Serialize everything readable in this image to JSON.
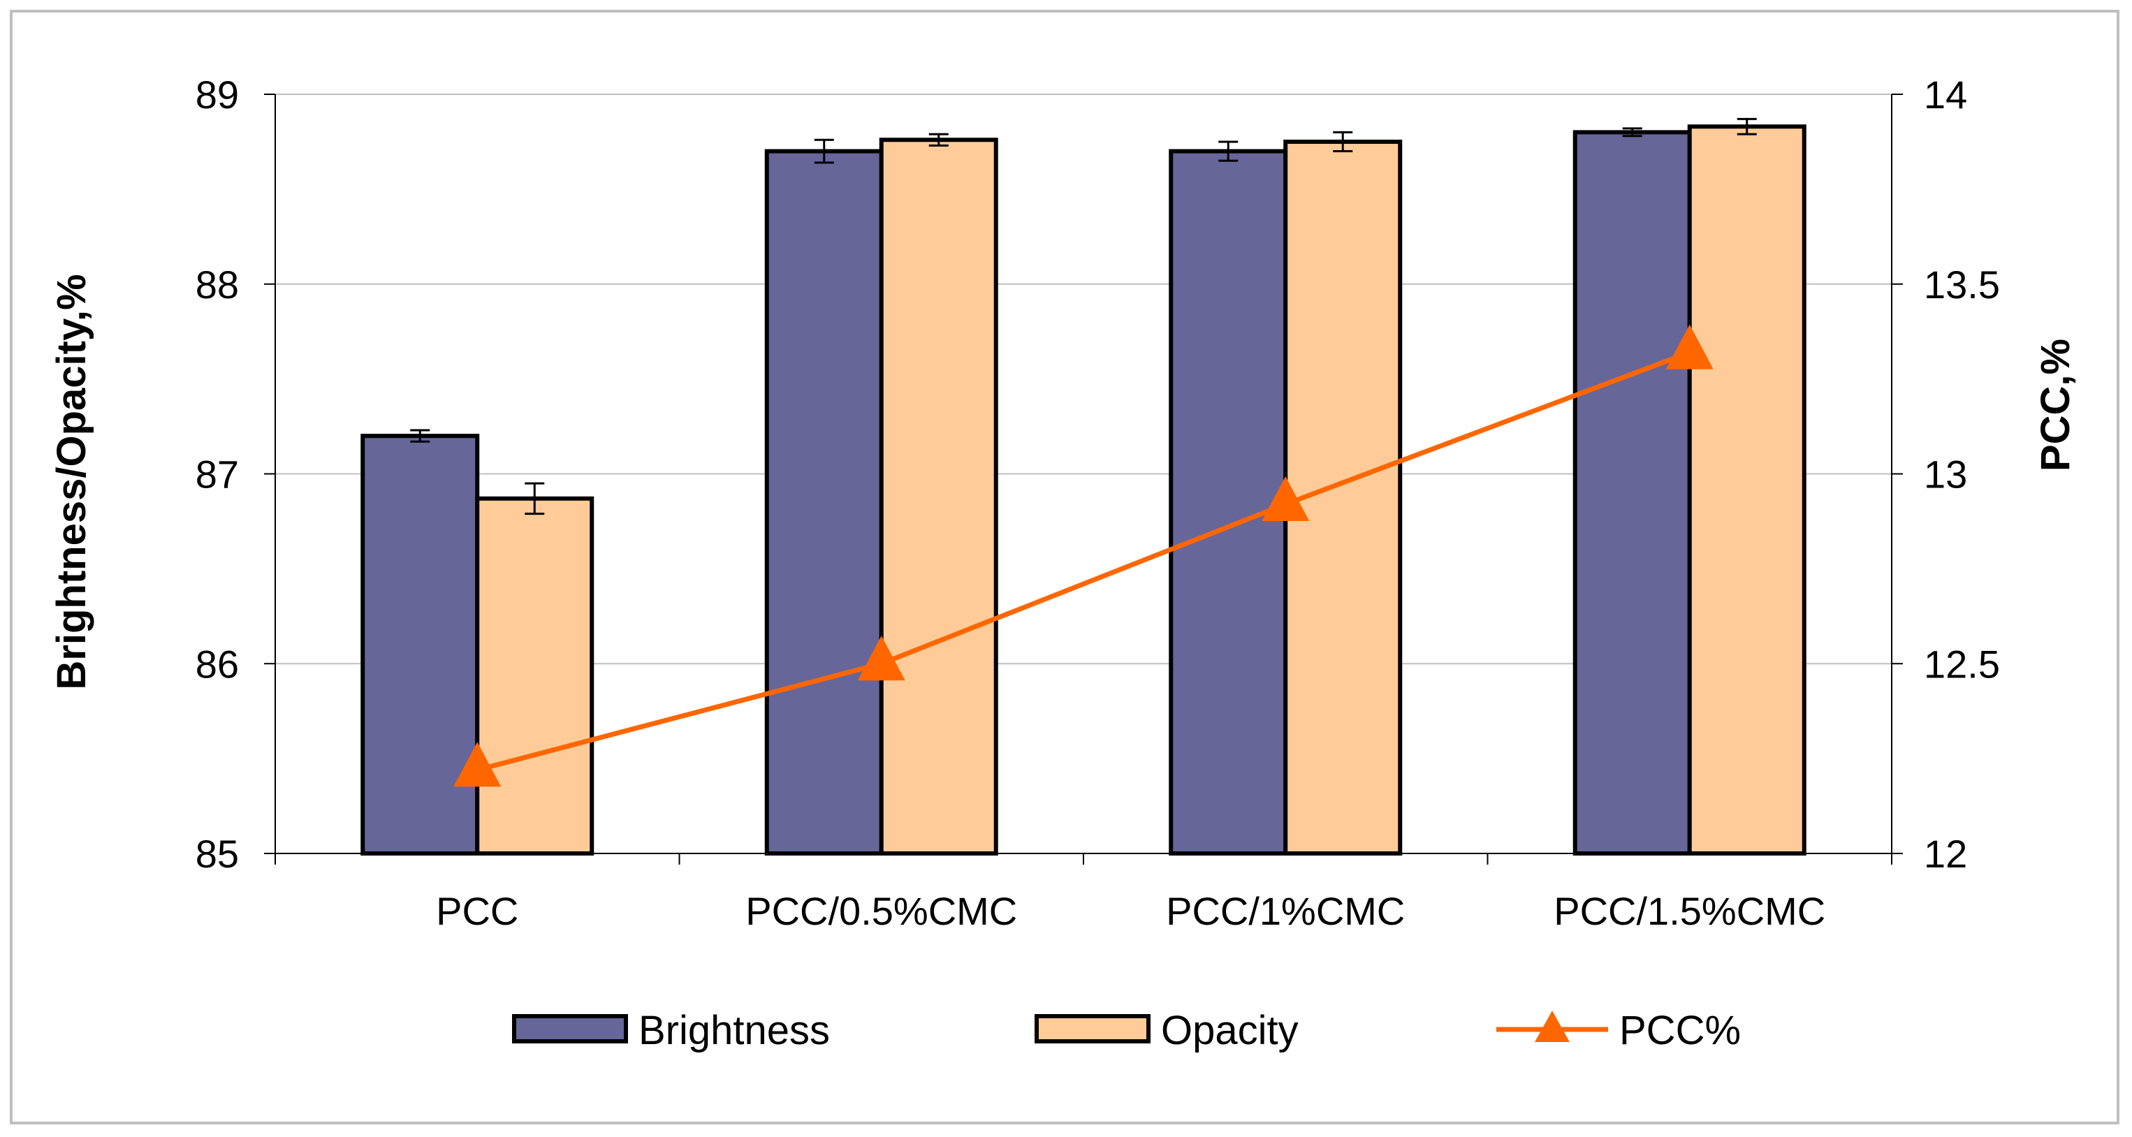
{
  "chart_data": {
    "type": "bar",
    "categories": [
      "PCC",
      "PCC/0.5%CMC",
      "PCC/1%CMC",
      "PCC/1.5%CMC"
    ],
    "series": [
      {
        "name": "Brightness",
        "kind": "bar",
        "axis": "left",
        "values": [
          87.2,
          88.7,
          88.7,
          88.8
        ],
        "errors": [
          0.03,
          0.06,
          0.05,
          0.02
        ],
        "color": "#666699"
      },
      {
        "name": "Opacity",
        "kind": "bar",
        "axis": "left",
        "values": [
          86.87,
          88.76,
          88.75,
          88.83
        ],
        "errors": [
          0.08,
          0.03,
          0.05,
          0.04
        ],
        "color": "#ffcc99"
      },
      {
        "name": "PCC%",
        "kind": "line",
        "marker": "triangle",
        "axis": "right",
        "values": [
          12.22,
          12.5,
          12.92,
          13.32
        ],
        "color": "#ff6600"
      }
    ],
    "ylabel": "Brightness/Opacity,%",
    "y2label": "PCC,%",
    "ylim": [
      85,
      89
    ],
    "y2lim": [
      12,
      14
    ],
    "yticks": [
      "85",
      "86",
      "87",
      "88",
      "89"
    ],
    "y2ticks": [
      "12",
      "12.5",
      "13",
      "13.5",
      "14"
    ],
    "grid": true,
    "legend_position": "bottom"
  }
}
